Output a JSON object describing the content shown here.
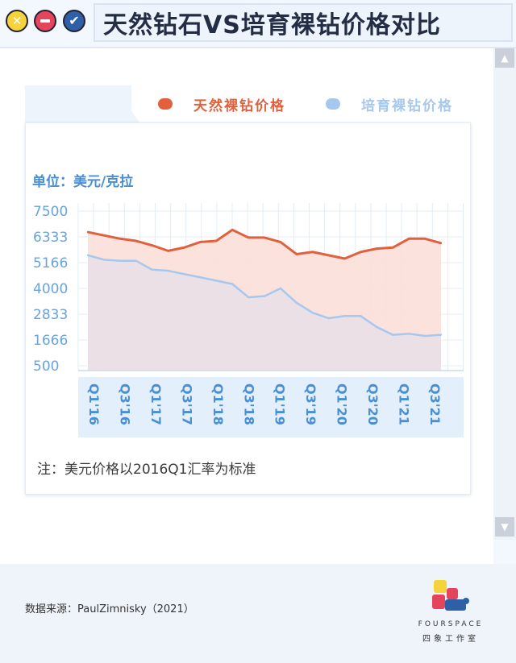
{
  "window": {
    "title": "天然钻石VS培育裸钻价格对比",
    "close_icon_glyph": "✕",
    "ok_icon_glyph": "✔"
  },
  "legend": [
    {
      "label": "天然裸钻价格",
      "color": "#e2603c"
    },
    {
      "label": "培育裸钻价格",
      "color": "#a6c8ef"
    }
  ],
  "unit_label": "单位：美元/克拉",
  "note": "注：美元价格以2016Q1汇率为标准",
  "source": "数据来源：PaulZimnisky（2021）",
  "brand": {
    "name": "FOURSPACE",
    "subtitle": "四象工作室"
  },
  "scroll": {
    "up": "▲",
    "down": "▼"
  },
  "chart_data": {
    "type": "area",
    "yticks": [
      7500,
      6333,
      5166,
      4000,
      2833,
      1666,
      500
    ],
    "ylim": [
      500,
      7500
    ],
    "xlabels": [
      "Q1'16",
      "Q3'16",
      "Q1'17",
      "Q3'17",
      "Q1'18",
      "Q3'18",
      "Q1'19",
      "Q3'19",
      "Q1'20",
      "Q3'20",
      "Q1'21",
      "Q3'21"
    ],
    "grid": true,
    "series": [
      {
        "name": "天然裸钻价格",
        "color": "#e2603c",
        "fill": "#fbe0da",
        "values": [
          6550,
          6400,
          6250,
          6150,
          5950,
          5700,
          5850,
          6100,
          6150,
          6650,
          6300,
          6300,
          6100,
          5550,
          5650,
          5500,
          5350,
          5650,
          5800,
          5850,
          6250,
          6250,
          6050
        ]
      },
      {
        "name": "培育裸钻价格",
        "color": "#a6c8ef",
        "fill": "#e6dfe8",
        "values": [
          5500,
          5300,
          5250,
          5250,
          4850,
          4800,
          4650,
          4500,
          4350,
          4200,
          3600,
          3650,
          4000,
          3350,
          2900,
          2650,
          2750,
          2750,
          2250,
          1900,
          1950,
          1850,
          1900
        ]
      }
    ]
  }
}
